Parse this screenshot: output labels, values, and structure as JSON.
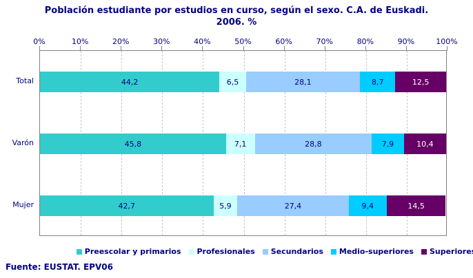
{
  "chart_data": {
    "type": "bar",
    "orientation": "horizontal",
    "stacked": true,
    "title": "Población estudiante por estudios en curso, según el sexo. C.A. de Euskadi. 2006. %",
    "title_lines": [
      "Población estudiante por estudios en curso, según el sexo. C.A. de Euskadi.",
      "2006. %"
    ],
    "categories": [
      "Total",
      "Varón",
      "Mujer"
    ],
    "series": [
      {
        "name": "Preescolar y primarios",
        "color": "#33CCCC",
        "label_color": "#000080",
        "values": [
          44.2,
          45.8,
          42.7
        ],
        "labels": [
          "44,2",
          "45,8",
          "42,7"
        ]
      },
      {
        "name": "Profesionales",
        "color": "#CCFFFF",
        "label_color": "#000080",
        "values": [
          6.5,
          7.1,
          5.9
        ],
        "labels": [
          "6,5",
          "7,1",
          "5,9"
        ]
      },
      {
        "name": "Secundarios",
        "color": "#99CCFF",
        "label_color": "#000080",
        "values": [
          28.1,
          28.8,
          27.4
        ],
        "labels": [
          "28,1",
          "28,8",
          "27,4"
        ]
      },
      {
        "name": "Medio-superiores",
        "color": "#00CCFF",
        "label_color": "#000080",
        "values": [
          8.7,
          7.9,
          9.4
        ],
        "labels": [
          "8,7",
          "7,9",
          "9,4"
        ]
      },
      {
        "name": "Superiores",
        "color": "#660066",
        "label_color": "#FFFFFF",
        "values": [
          12.5,
          10.4,
          14.5
        ],
        "labels": [
          "12,5",
          "10,4",
          "14,5"
        ]
      }
    ],
    "x_axis": {
      "position": "top",
      "min": 0,
      "max": 100,
      "tick_step": 10,
      "ticks": [
        "0%",
        "10%",
        "20%",
        "30%",
        "40%",
        "50%",
        "60%",
        "70%",
        "80%",
        "90%",
        "100%"
      ],
      "gridlines": "dashed"
    },
    "xlabel": "",
    "ylabel": "",
    "legend_position": "bottom"
  },
  "footer": {
    "source_note": "Fuente: EUSTAT. EPV06"
  },
  "colors": {
    "text": "#000080",
    "plot_border": "#808080",
    "gridline": "#C6C6C6",
    "background": "#FFFFFF"
  }
}
